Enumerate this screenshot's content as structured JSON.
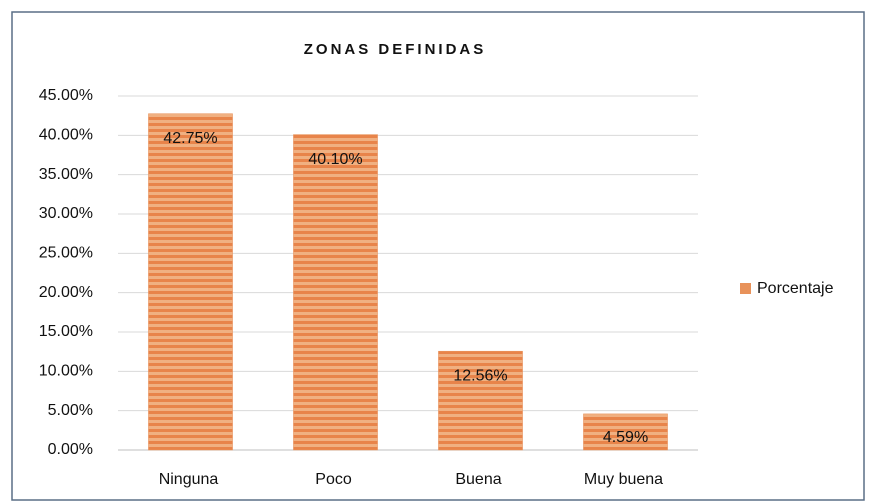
{
  "chart_data": {
    "type": "bar",
    "title": "ZONAS DEFINIDAS",
    "categories": [
      "Ninguna",
      "Poco",
      "Buena",
      "Muy buena"
    ],
    "series": [
      {
        "name": "Porcentaje",
        "color": "#e8925a",
        "values": [
          42.75,
          40.1,
          12.56,
          4.59
        ],
        "value_labels": [
          "42.75%",
          "40.10%",
          "12.56%",
          "4.59%"
        ]
      }
    ],
    "ylim": [
      0,
      45
    ],
    "yticks": [
      {
        "value": 0,
        "label": "0.00%"
      },
      {
        "value": 5,
        "label": "5.00%"
      },
      {
        "value": 10,
        "label": "10.00%"
      },
      {
        "value": 15,
        "label": "15.00%"
      },
      {
        "value": 20,
        "label": "20.00%"
      },
      {
        "value": 25,
        "label": "25.00%"
      },
      {
        "value": 30,
        "label": "30.00%"
      },
      {
        "value": 35,
        "label": "35.00%"
      },
      {
        "value": 40,
        "label": "40.00%"
      },
      {
        "value": 45,
        "label": "45.00%"
      }
    ],
    "grid": true,
    "legend": "right"
  }
}
